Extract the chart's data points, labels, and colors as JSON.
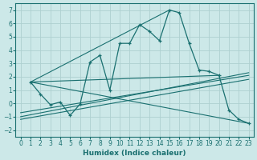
{
  "xlabel": "Humidex (Indice chaleur)",
  "bg_color": "#cce8e8",
  "grid_color": "#aed0d0",
  "line_color": "#1a7070",
  "xlim": [
    -0.5,
    23.5
  ],
  "ylim": [
    -2.5,
    7.5
  ],
  "xticks": [
    0,
    1,
    2,
    3,
    4,
    5,
    6,
    7,
    8,
    9,
    10,
    11,
    12,
    13,
    14,
    15,
    16,
    17,
    18,
    19,
    20,
    21,
    22,
    23
  ],
  "yticks": [
    -2,
    -1,
    0,
    1,
    2,
    3,
    4,
    5,
    6,
    7
  ],
  "main_x": [
    1,
    2,
    3,
    4,
    5,
    6,
    7,
    8,
    9,
    10,
    11,
    12,
    13,
    14,
    15,
    16,
    17,
    18,
    19,
    20,
    21,
    22,
    23
  ],
  "main_y": [
    1.6,
    0.7,
    -0.1,
    0.1,
    -0.9,
    -0.05,
    3.1,
    3.6,
    1.0,
    4.5,
    4.5,
    5.9,
    5.4,
    4.7,
    7.0,
    6.8,
    4.5,
    2.5,
    2.4,
    2.1,
    -0.5,
    -1.2,
    -1.5
  ],
  "fan_lines": [
    {
      "x": [
        1,
        23
      ],
      "y": [
        1.6,
        -1.5
      ]
    },
    {
      "x": [
        1,
        20
      ],
      "y": [
        1.6,
        2.1
      ]
    },
    {
      "x": [
        1,
        15
      ],
      "y": [
        1.6,
        7.0
      ]
    }
  ],
  "trend_lines": [
    {
      "x": [
        0,
        23
      ],
      "y": [
        -1.0,
        2.3
      ]
    },
    {
      "x": [
        0,
        23
      ],
      "y": [
        -0.7,
        2.1
      ]
    },
    {
      "x": [
        0,
        23
      ],
      "y": [
        -1.2,
        1.8
      ]
    }
  ]
}
